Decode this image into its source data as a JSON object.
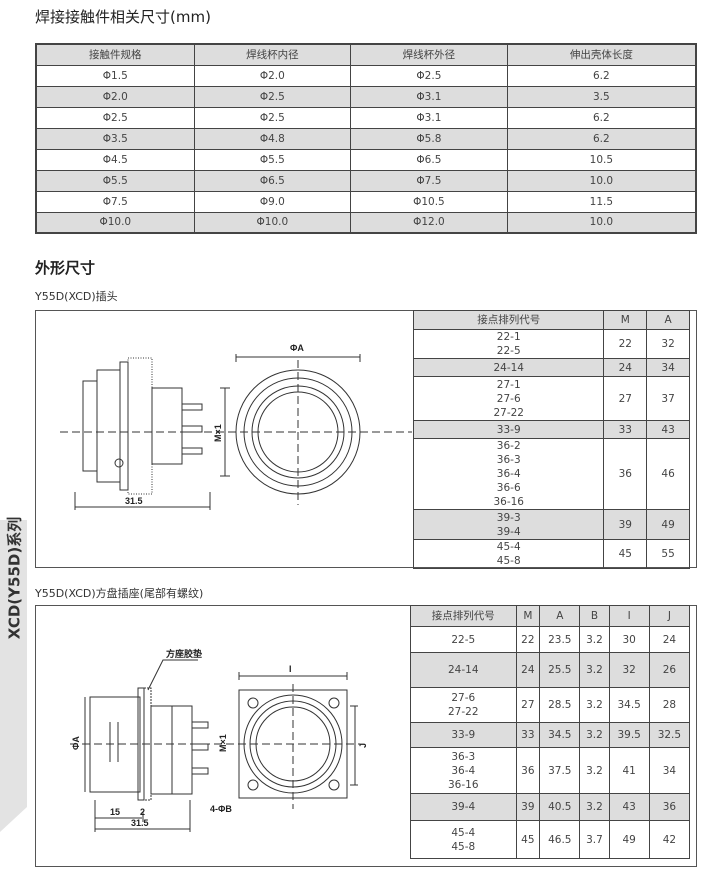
{
  "title": "焊接接触件相关尺寸(mm)",
  "contact_table": {
    "headers": [
      "接触件规格",
      "焊线杯内径",
      "焊线杯外径",
      "伸出壳体长度"
    ],
    "rows": [
      [
        "Φ1.5",
        "Φ2.0",
        "Φ2.5",
        "6.2"
      ],
      [
        "Φ2.0",
        "Φ2.5",
        "Φ3.1",
        "3.5"
      ],
      [
        "Φ2.5",
        "Φ2.5",
        "Φ3.1",
        "6.2"
      ],
      [
        "Φ3.5",
        "Φ4.8",
        "Φ5.8",
        "6.2"
      ],
      [
        "Φ4.5",
        "Φ5.5",
        "Φ6.5",
        "10.5"
      ],
      [
        "Φ5.5",
        "Φ6.5",
        "Φ7.5",
        "10.0"
      ],
      [
        "Φ7.5",
        "Φ9.0",
        "Φ10.5",
        "11.5"
      ],
      [
        "Φ10.0",
        "Φ10.0",
        "Φ12.0",
        "10.0"
      ]
    ]
  },
  "section_title": "外形尺寸",
  "plug": {
    "title": "Y55D(XCD)插头",
    "drawing_labels": {
      "dia_a": "ΦA",
      "mx1": "M×1",
      "len": "31.5"
    },
    "headers": [
      "接点排列代号",
      "M",
      "A"
    ],
    "rows": [
      [
        "22-1\n22-5",
        "22",
        "32"
      ],
      [
        "24-14",
        "24",
        "34"
      ],
      [
        "27-1\n27-6\n27-22",
        "27",
        "37"
      ],
      [
        "33-9",
        "33",
        "43"
      ],
      [
        "36-2\n36-3\n36-4\n36-6\n36-16",
        "36",
        "46"
      ],
      [
        "39-3\n39-4",
        "39",
        "49"
      ],
      [
        "45-4\n45-8",
        "45",
        "55"
      ]
    ]
  },
  "receptacle": {
    "title": "Y55D(XCD)方盘插座(尾部有螺纹)",
    "drawing_labels": {
      "gasket": "方座胶垫",
      "dia_a": "ΦA",
      "mx1": "M×1",
      "i": "I",
      "j": "J",
      "holes": "4-ΦB",
      "d15": "15",
      "d2": "2",
      "len": "31.5"
    },
    "headers": [
      "接点排列代号",
      "M",
      "A",
      "B",
      "I",
      "J"
    ],
    "rows": [
      [
        "22-5",
        "22",
        "23.5",
        "3.2",
        "30",
        "24"
      ],
      [
        "24-14",
        "24",
        "25.5",
        "3.2",
        "32",
        "26"
      ],
      [
        "27-6\n27-22",
        "27",
        "28.5",
        "3.2",
        "34.5",
        "28"
      ],
      [
        "33-9",
        "33",
        "34.5",
        "3.2",
        "39.5",
        "32.5"
      ],
      [
        "36-3\n36-4\n36-16",
        "36",
        "37.5",
        "3.2",
        "41",
        "34"
      ],
      [
        "39-4",
        "39",
        "40.5",
        "3.2",
        "43",
        "36"
      ],
      [
        "45-4\n45-8",
        "45",
        "46.5",
        "3.7",
        "49",
        "42"
      ]
    ]
  },
  "side_tab": "XCD(Y55D)系列"
}
